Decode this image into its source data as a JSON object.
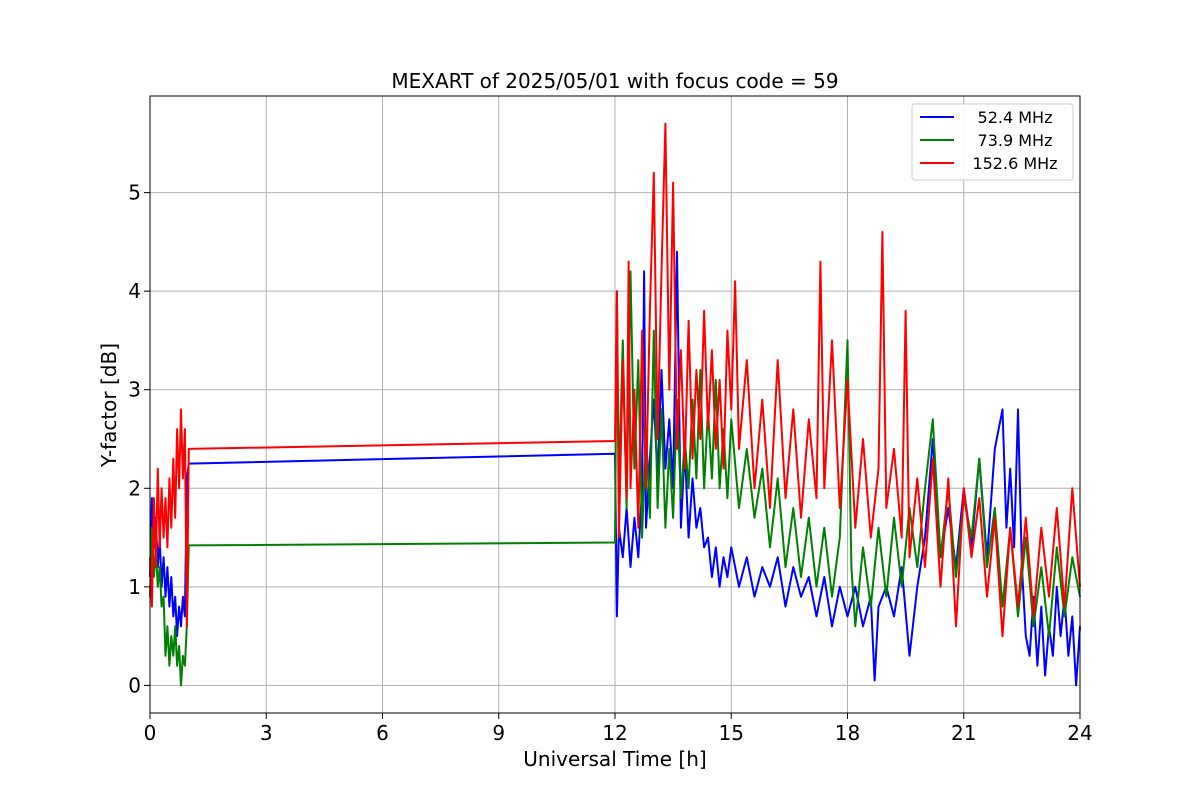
{
  "chart_data": {
    "type": "line",
    "title": "MEXART of 2025/05/01 with focus code = 59",
    "xlabel": "Universal Time [h]",
    "ylabel": "Y-factor [dB]",
    "xlim": [
      0,
      24
    ],
    "ylim": [
      -0.28,
      5.98
    ],
    "xticks": [
      0,
      3,
      6,
      9,
      12,
      15,
      18,
      21,
      24
    ],
    "yticks": [
      0,
      1,
      2,
      3,
      4,
      5
    ],
    "grid": true,
    "legend_position": "top-right",
    "series": [
      {
        "name": "52.4 MHz",
        "color": "#0000ff",
        "points": [
          [
            0.0,
            1.1
          ],
          [
            0.05,
            1.9
          ],
          [
            0.1,
            1.4
          ],
          [
            0.15,
            1.7
          ],
          [
            0.2,
            1.2
          ],
          [
            0.25,
            1.5
          ],
          [
            0.3,
            1.0
          ],
          [
            0.35,
            1.3
          ],
          [
            0.4,
            0.9
          ],
          [
            0.45,
            1.2
          ],
          [
            0.5,
            0.8
          ],
          [
            0.55,
            1.1
          ],
          [
            0.6,
            0.7
          ],
          [
            0.65,
            0.9
          ],
          [
            0.7,
            0.5
          ],
          [
            0.75,
            0.8
          ],
          [
            0.8,
            0.6
          ],
          [
            0.85,
            0.9
          ],
          [
            0.9,
            0.7
          ],
          [
            0.95,
            2.1
          ],
          [
            1.0,
            2.25
          ],
          [
            12.0,
            2.35
          ],
          [
            12.05,
            0.7
          ],
          [
            12.1,
            1.6
          ],
          [
            12.2,
            1.3
          ],
          [
            12.3,
            1.8
          ],
          [
            12.4,
            1.2
          ],
          [
            12.5,
            1.7
          ],
          [
            12.6,
            1.3
          ],
          [
            12.7,
            2.0
          ],
          [
            12.75,
            4.2
          ],
          [
            12.8,
            1.6
          ],
          [
            12.9,
            2.3
          ],
          [
            13.0,
            2.9
          ],
          [
            13.1,
            2.1
          ],
          [
            13.2,
            3.2
          ],
          [
            13.3,
            2.2
          ],
          [
            13.4,
            2.7
          ],
          [
            13.5,
            2.0
          ],
          [
            13.6,
            4.4
          ],
          [
            13.7,
            1.6
          ],
          [
            13.8,
            2.4
          ],
          [
            13.9,
            1.5
          ],
          [
            14.0,
            2.1
          ],
          [
            14.1,
            1.6
          ],
          [
            14.2,
            1.8
          ],
          [
            14.3,
            1.4
          ],
          [
            14.4,
            1.5
          ],
          [
            14.5,
            1.1
          ],
          [
            14.6,
            1.4
          ],
          [
            14.7,
            1.0
          ],
          [
            14.8,
            1.3
          ],
          [
            14.9,
            1.1
          ],
          [
            15.0,
            1.4
          ],
          [
            15.2,
            1.0
          ],
          [
            15.4,
            1.3
          ],
          [
            15.6,
            0.9
          ],
          [
            15.8,
            1.2
          ],
          [
            16.0,
            1.0
          ],
          [
            16.2,
            1.3
          ],
          [
            16.4,
            0.8
          ],
          [
            16.6,
            1.2
          ],
          [
            16.8,
            0.9
          ],
          [
            17.0,
            1.1
          ],
          [
            17.2,
            0.7
          ],
          [
            17.4,
            1.1
          ],
          [
            17.6,
            0.6
          ],
          [
            17.8,
            1.0
          ],
          [
            18.0,
            0.7
          ],
          [
            18.2,
            1.0
          ],
          [
            18.4,
            0.6
          ],
          [
            18.6,
            0.9
          ],
          [
            18.7,
            0.05
          ],
          [
            18.8,
            0.8
          ],
          [
            19.0,
            1.0
          ],
          [
            19.2,
            0.7
          ],
          [
            19.4,
            1.2
          ],
          [
            19.6,
            0.3
          ],
          [
            19.8,
            1.0
          ],
          [
            20.0,
            1.5
          ],
          [
            20.2,
            2.5
          ],
          [
            20.4,
            1.3
          ],
          [
            20.6,
            1.8
          ],
          [
            20.8,
            1.2
          ],
          [
            21.0,
            2.0
          ],
          [
            21.2,
            1.4
          ],
          [
            21.4,
            2.3
          ],
          [
            21.6,
            1.3
          ],
          [
            21.8,
            2.4
          ],
          [
            22.0,
            2.8
          ],
          [
            22.1,
            1.6
          ],
          [
            22.2,
            2.2
          ],
          [
            22.3,
            1.4
          ],
          [
            22.4,
            2.8
          ],
          [
            22.5,
            1.2
          ],
          [
            22.6,
            0.5
          ],
          [
            22.7,
            0.3
          ],
          [
            22.8,
            0.9
          ],
          [
            22.9,
            0.2
          ],
          [
            23.0,
            0.8
          ],
          [
            23.1,
            0.1
          ],
          [
            23.2,
            0.6
          ],
          [
            23.3,
            0.3
          ],
          [
            23.4,
            1.0
          ],
          [
            23.5,
            0.5
          ],
          [
            23.6,
            0.9
          ],
          [
            23.7,
            0.3
          ],
          [
            23.8,
            0.7
          ],
          [
            23.9,
            0.0
          ],
          [
            24.0,
            0.6
          ]
        ]
      },
      {
        "name": "73.9 MHz",
        "color": "#008000",
        "points": [
          [
            0.0,
            0.9
          ],
          [
            0.05,
            1.6
          ],
          [
            0.1,
            1.1
          ],
          [
            0.15,
            1.4
          ],
          [
            0.2,
            1.0
          ],
          [
            0.25,
            1.2
          ],
          [
            0.3,
            0.8
          ],
          [
            0.35,
            0.9
          ],
          [
            0.4,
            0.3
          ],
          [
            0.45,
            0.6
          ],
          [
            0.5,
            0.2
          ],
          [
            0.55,
            0.5
          ],
          [
            0.6,
            0.3
          ],
          [
            0.65,
            0.6
          ],
          [
            0.7,
            0.2
          ],
          [
            0.75,
            0.4
          ],
          [
            0.8,
            0.0
          ],
          [
            0.85,
            0.3
          ],
          [
            0.9,
            0.2
          ],
          [
            0.95,
            0.6
          ],
          [
            1.0,
            1.42
          ],
          [
            12.0,
            1.45
          ],
          [
            12.05,
            4.0
          ],
          [
            12.1,
            2.0
          ],
          [
            12.2,
            3.5
          ],
          [
            12.3,
            1.8
          ],
          [
            12.4,
            4.2
          ],
          [
            12.5,
            2.2
          ],
          [
            12.6,
            3.3
          ],
          [
            12.7,
            1.5
          ],
          [
            12.8,
            2.6
          ],
          [
            12.9,
            1.7
          ],
          [
            13.0,
            3.6
          ],
          [
            13.1,
            1.8
          ],
          [
            13.2,
            2.8
          ],
          [
            13.3,
            1.6
          ],
          [
            13.4,
            2.4
          ],
          [
            13.5,
            1.7
          ],
          [
            13.6,
            2.9
          ],
          [
            13.7,
            1.9
          ],
          [
            13.8,
            2.5
          ],
          [
            13.9,
            2.0
          ],
          [
            14.0,
            2.9
          ],
          [
            14.1,
            2.1
          ],
          [
            14.2,
            3.2
          ],
          [
            14.3,
            2.0
          ],
          [
            14.4,
            2.8
          ],
          [
            14.5,
            2.1
          ],
          [
            14.6,
            3.1
          ],
          [
            14.7,
            2.0
          ],
          [
            14.8,
            2.6
          ],
          [
            14.9,
            1.9
          ],
          [
            15.0,
            2.7
          ],
          [
            15.2,
            1.8
          ],
          [
            15.4,
            2.4
          ],
          [
            15.6,
            1.7
          ],
          [
            15.8,
            2.2
          ],
          [
            16.0,
            1.4
          ],
          [
            16.2,
            2.1
          ],
          [
            16.4,
            1.2
          ],
          [
            16.6,
            1.8
          ],
          [
            16.8,
            1.1
          ],
          [
            17.0,
            1.7
          ],
          [
            17.2,
            1.0
          ],
          [
            17.4,
            1.6
          ],
          [
            17.6,
            0.9
          ],
          [
            17.8,
            1.5
          ],
          [
            18.0,
            3.5
          ],
          [
            18.1,
            1.2
          ],
          [
            18.2,
            0.6
          ],
          [
            18.4,
            1.4
          ],
          [
            18.6,
            0.8
          ],
          [
            18.8,
            1.6
          ],
          [
            19.0,
            0.9
          ],
          [
            19.2,
            1.7
          ],
          [
            19.4,
            1.0
          ],
          [
            19.6,
            1.8
          ],
          [
            19.8,
            1.2
          ],
          [
            20.0,
            2.0
          ],
          [
            20.2,
            2.7
          ],
          [
            20.4,
            1.3
          ],
          [
            20.6,
            2.0
          ],
          [
            20.8,
            1.1
          ],
          [
            21.0,
            1.9
          ],
          [
            21.2,
            1.5
          ],
          [
            21.4,
            2.3
          ],
          [
            21.6,
            1.2
          ],
          [
            21.8,
            1.8
          ],
          [
            22.0,
            0.8
          ],
          [
            22.2,
            1.6
          ],
          [
            22.4,
            0.7
          ],
          [
            22.6,
            1.5
          ],
          [
            22.8,
            0.6
          ],
          [
            23.0,
            1.2
          ],
          [
            23.2,
            0.5
          ],
          [
            23.4,
            1.4
          ],
          [
            23.6,
            0.7
          ],
          [
            23.8,
            1.3
          ],
          [
            24.0,
            0.9
          ]
        ]
      },
      {
        "name": "152.6 MHz",
        "color": "#ff0000",
        "points": [
          [
            0.0,
            1.3
          ],
          [
            0.05,
            0.8
          ],
          [
            0.1,
            1.9
          ],
          [
            0.15,
            1.2
          ],
          [
            0.2,
            2.2
          ],
          [
            0.25,
            1.4
          ],
          [
            0.3,
            2.0
          ],
          [
            0.35,
            1.5
          ],
          [
            0.4,
            1.9
          ],
          [
            0.45,
            1.4
          ],
          [
            0.5,
            2.1
          ],
          [
            0.55,
            1.6
          ],
          [
            0.6,
            2.3
          ],
          [
            0.65,
            1.7
          ],
          [
            0.7,
            2.6
          ],
          [
            0.75,
            2.0
          ],
          [
            0.8,
            2.8
          ],
          [
            0.85,
            2.1
          ],
          [
            0.9,
            2.6
          ],
          [
            0.95,
            0.6
          ],
          [
            1.0,
            2.4
          ],
          [
            12.0,
            2.48
          ],
          [
            12.05,
            4.0
          ],
          [
            12.1,
            1.5
          ],
          [
            12.2,
            3.3
          ],
          [
            12.3,
            1.9
          ],
          [
            12.35,
            4.3
          ],
          [
            12.4,
            2.0
          ],
          [
            12.5,
            3.0
          ],
          [
            12.6,
            1.6
          ],
          [
            12.7,
            3.6
          ],
          [
            12.8,
            2.0
          ],
          [
            12.9,
            3.8
          ],
          [
            13.0,
            5.2
          ],
          [
            13.1,
            2.5
          ],
          [
            13.2,
            4.2
          ],
          [
            13.3,
            5.7
          ],
          [
            13.4,
            3.0
          ],
          [
            13.5,
            5.1
          ],
          [
            13.6,
            2.4
          ],
          [
            13.7,
            3.4
          ],
          [
            13.8,
            2.2
          ],
          [
            13.9,
            3.7
          ],
          [
            14.0,
            2.3
          ],
          [
            14.1,
            3.2
          ],
          [
            14.2,
            2.5
          ],
          [
            14.3,
            3.8
          ],
          [
            14.4,
            2.6
          ],
          [
            14.5,
            3.4
          ],
          [
            14.6,
            2.4
          ],
          [
            14.7,
            3.1
          ],
          [
            14.8,
            2.2
          ],
          [
            14.9,
            3.6
          ],
          [
            15.0,
            2.8
          ],
          [
            15.1,
            4.1
          ],
          [
            15.2,
            2.4
          ],
          [
            15.4,
            3.3
          ],
          [
            15.6,
            2.0
          ],
          [
            15.8,
            2.9
          ],
          [
            16.0,
            1.8
          ],
          [
            16.2,
            3.3
          ],
          [
            16.4,
            1.9
          ],
          [
            16.6,
            2.8
          ],
          [
            16.8,
            1.7
          ],
          [
            17.0,
            2.7
          ],
          [
            17.2,
            1.9
          ],
          [
            17.3,
            4.3
          ],
          [
            17.4,
            2.0
          ],
          [
            17.6,
            3.5
          ],
          [
            17.8,
            1.8
          ],
          [
            18.0,
            3.1
          ],
          [
            18.2,
            1.6
          ],
          [
            18.4,
            2.5
          ],
          [
            18.6,
            1.5
          ],
          [
            18.8,
            2.2
          ],
          [
            18.9,
            4.6
          ],
          [
            19.0,
            1.8
          ],
          [
            19.2,
            2.4
          ],
          [
            19.4,
            1.5
          ],
          [
            19.5,
            3.8
          ],
          [
            19.6,
            1.3
          ],
          [
            19.8,
            2.1
          ],
          [
            20.0,
            1.2
          ],
          [
            20.2,
            2.3
          ],
          [
            20.4,
            1.0
          ],
          [
            20.6,
            2.1
          ],
          [
            20.8,
            0.6
          ],
          [
            21.0,
            2.0
          ],
          [
            21.2,
            1.3
          ],
          [
            21.4,
            1.9
          ],
          [
            21.6,
            0.9
          ],
          [
            21.8,
            1.7
          ],
          [
            22.0,
            0.5
          ],
          [
            22.2,
            1.6
          ],
          [
            22.4,
            0.8
          ],
          [
            22.6,
            1.7
          ],
          [
            22.8,
            0.7
          ],
          [
            23.0,
            1.6
          ],
          [
            23.2,
            0.9
          ],
          [
            23.4,
            1.8
          ],
          [
            23.6,
            0.8
          ],
          [
            23.8,
            2.0
          ],
          [
            24.0,
            1.0
          ]
        ]
      }
    ]
  }
}
